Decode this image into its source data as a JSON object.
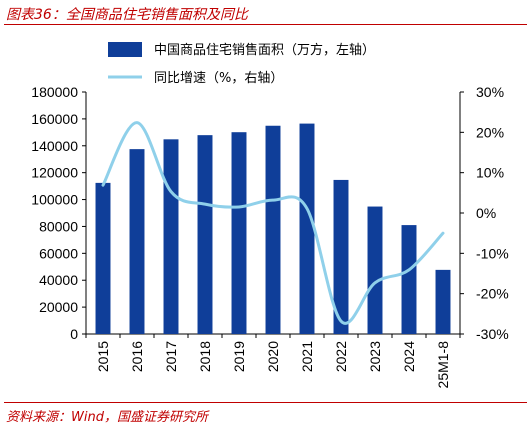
{
  "figure": {
    "title": "图表36：全国商品住宅销售面积及同比",
    "source": "资料来源：Wind，国盛证券研究所"
  },
  "colors": {
    "bar": "#0f3e99",
    "line": "#8fd0ea",
    "accent": "#c00000"
  },
  "chart_data": {
    "type": "bar",
    "categories": [
      "2015",
      "2016",
      "2017",
      "2018",
      "2019",
      "2020",
      "2021",
      "2022",
      "2023",
      "2024",
      "25M1-8"
    ],
    "series": [
      {
        "name": "中国商品住宅销售面积（万方，左轴）",
        "type": "bar",
        "axis": "left",
        "values": [
          112400,
          137500,
          144800,
          147900,
          150100,
          154900,
          156500,
          114600,
          94800,
          81000,
          47700
        ]
      },
      {
        "name": "同比增速（%，右轴）",
        "type": "line",
        "axis": "right",
        "values": [
          6.9,
          22.4,
          5.3,
          2.2,
          1.5,
          3.2,
          1.1,
          -26.8,
          -17.3,
          -14.1,
          -5.0
        ]
      }
    ],
    "y_left": {
      "lim": [
        0,
        180000
      ],
      "ticks": [
        "0",
        "20000",
        "40000",
        "60000",
        "80000",
        "100000",
        "120000",
        "140000",
        "160000",
        "180000"
      ]
    },
    "y_right": {
      "lim": [
        -30,
        30
      ],
      "ticks": [
        "-30%",
        "-20%",
        "-10%",
        "0%",
        "10%",
        "20%",
        "30%"
      ]
    },
    "legend_position": "top",
    "grid": false
  }
}
